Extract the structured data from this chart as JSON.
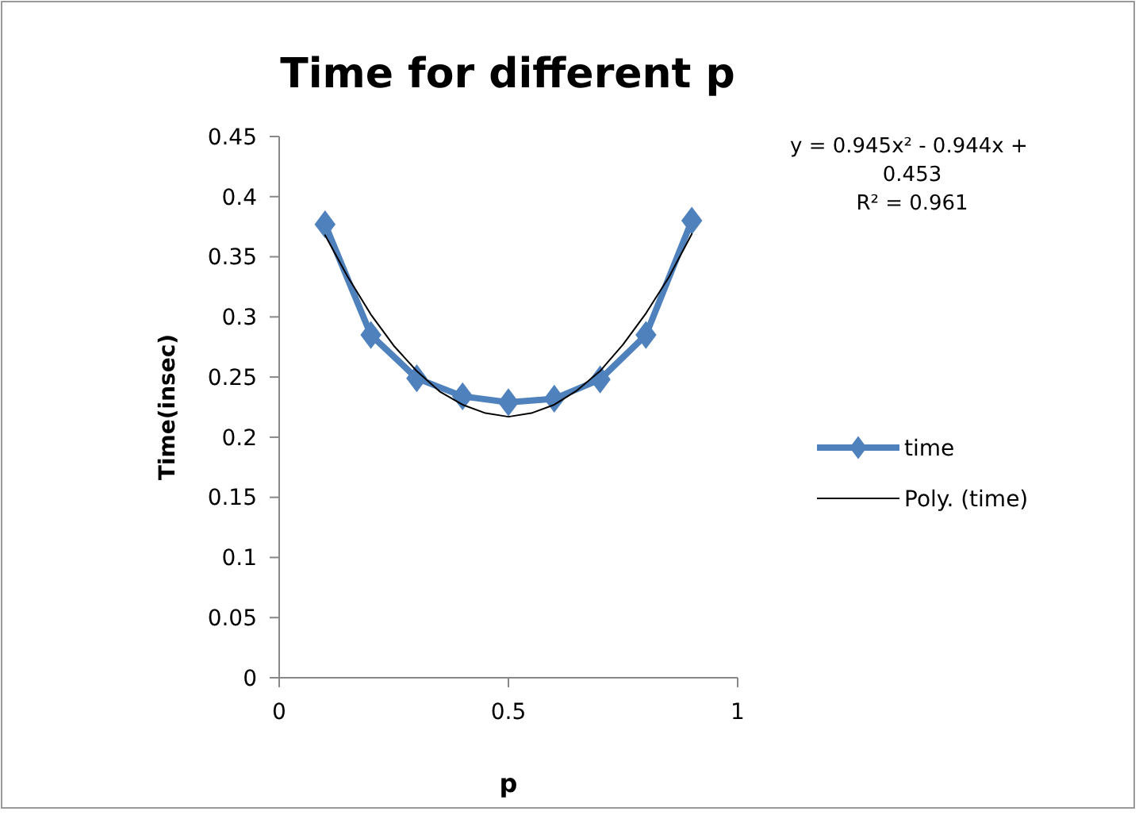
{
  "chart_data": {
    "type": "line",
    "title": "Time for different p",
    "xlabel": "p",
    "ylabel": "Time(insec)",
    "xlim": [
      0,
      1
    ],
    "xticks": [
      0,
      0.5,
      1
    ],
    "ylim": [
      0,
      0.45
    ],
    "yticks": [
      0,
      0.05,
      0.1,
      0.15,
      0.2,
      0.25,
      0.3,
      0.35,
      0.4,
      0.45
    ],
    "grid": false,
    "legend": "right",
    "annotations": [
      "y = 0.945x² - 0.944x + 0.453",
      "R² = 0.961"
    ],
    "series": [
      {
        "name": "time",
        "color": "#4f81bd",
        "marker": "diamond",
        "x": [
          0.1,
          0.2,
          0.3,
          0.4,
          0.5,
          0.6,
          0.7,
          0.8,
          0.9
        ],
        "values": [
          0.377,
          0.285,
          0.249,
          0.234,
          0.229,
          0.232,
          0.248,
          0.285,
          0.38
        ]
      },
      {
        "name": "Poly. (time)",
        "color": "#000000",
        "marker": "none",
        "x": [
          0.1,
          0.15,
          0.2,
          0.25,
          0.3,
          0.35,
          0.4,
          0.45,
          0.5,
          0.55,
          0.6,
          0.65,
          0.7,
          0.75,
          0.8,
          0.85,
          0.9
        ],
        "values": [
          0.368,
          0.333,
          0.302,
          0.276,
          0.255,
          0.238,
          0.227,
          0.22,
          0.217,
          0.22,
          0.227,
          0.239,
          0.255,
          0.277,
          0.303,
          0.333,
          0.369
        ]
      }
    ]
  }
}
